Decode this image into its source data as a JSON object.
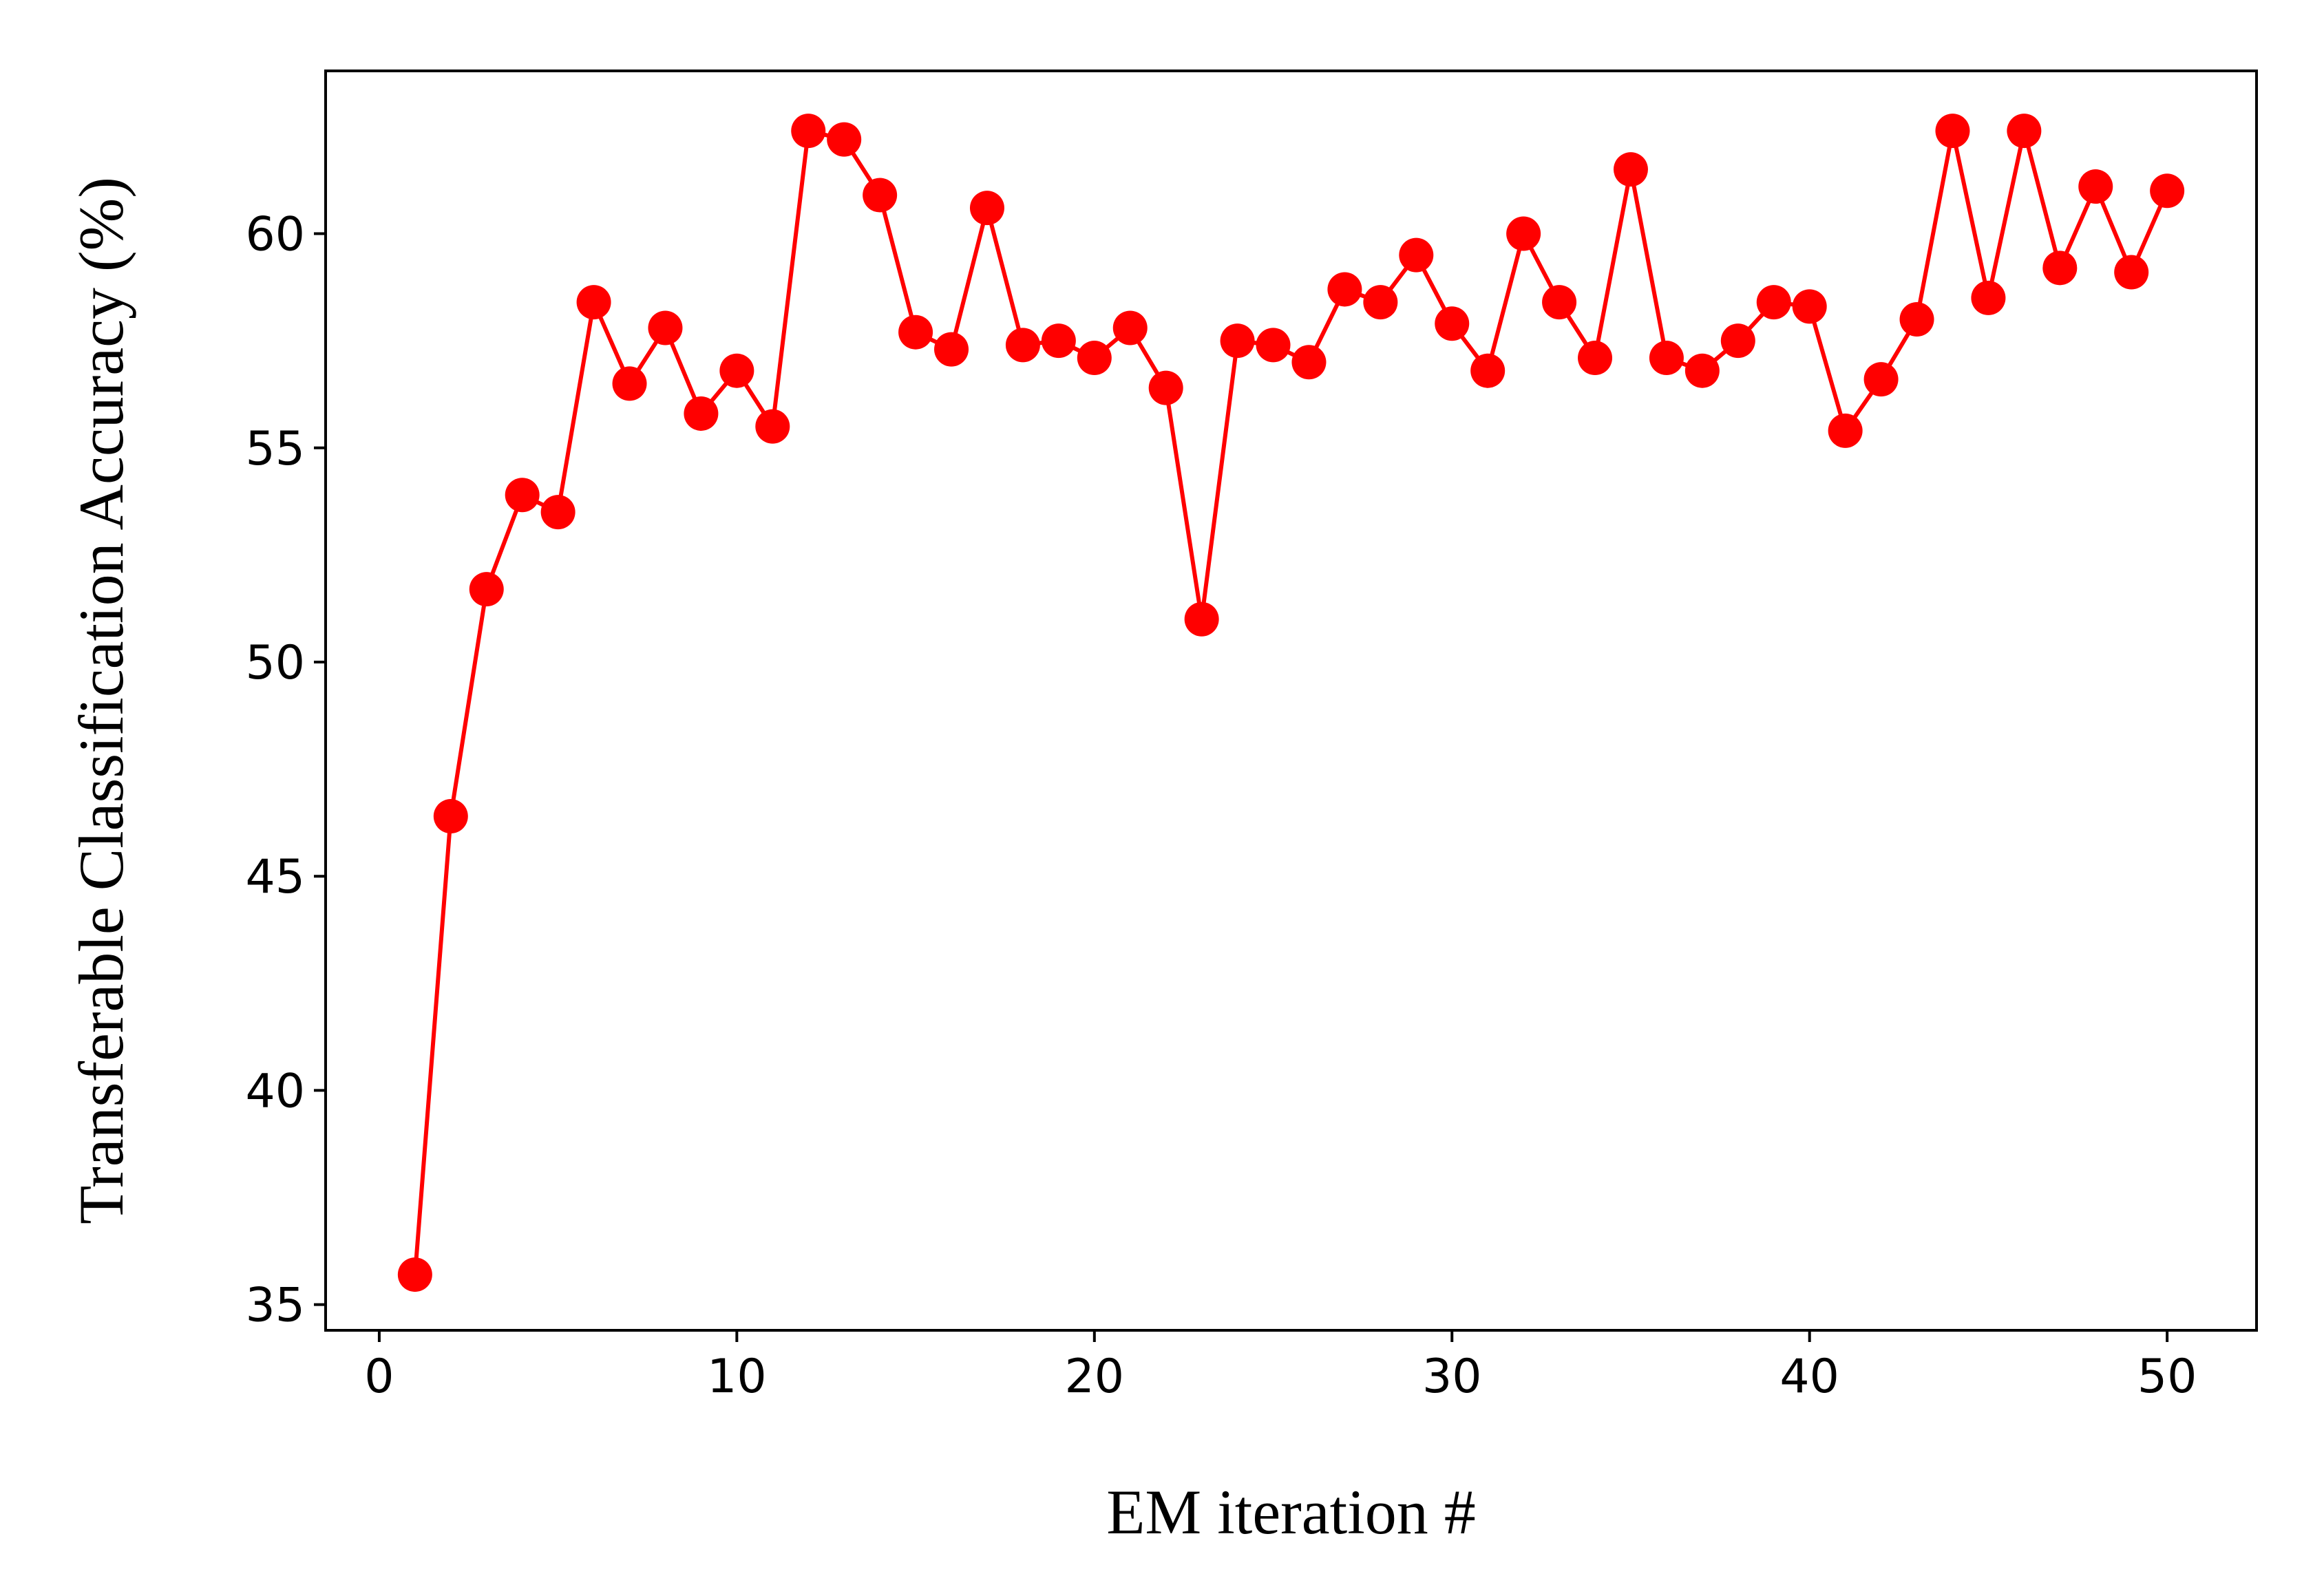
{
  "chart_data": {
    "type": "line",
    "title": "",
    "xlabel": "EM iteration #",
    "ylabel": "Transferable Classification Accuracy (%)",
    "xlim": [
      -1.5,
      52.5
    ],
    "ylim": [
      34.4,
      63.8
    ],
    "xticks": [
      0,
      10,
      20,
      30,
      40,
      50
    ],
    "yticks": [
      35,
      40,
      45,
      50,
      55,
      60
    ],
    "grid": false,
    "legend": null,
    "colors": {
      "series": "#ff0000",
      "axes": "#000000"
    },
    "series": [
      {
        "marker": "circle",
        "x": [
          1,
          2,
          3,
          4,
          5,
          6,
          7,
          8,
          9,
          10,
          11,
          12,
          13,
          14,
          15,
          16,
          17,
          18,
          19,
          20,
          21,
          22,
          23,
          24,
          25,
          26,
          27,
          28,
          29,
          30,
          31,
          32,
          33,
          34,
          35,
          36,
          37,
          38,
          39,
          40,
          41,
          42,
          43,
          44,
          45,
          46,
          47,
          48,
          49,
          50
        ],
        "y": [
          35.7,
          46.4,
          51.7,
          53.9,
          53.5,
          58.4,
          56.5,
          57.8,
          55.8,
          56.8,
          55.5,
          62.4,
          62.2,
          60.9,
          57.7,
          57.3,
          60.6,
          57.4,
          57.5,
          57.1,
          57.8,
          56.4,
          51.0,
          57.5,
          57.4,
          57.0,
          58.7,
          58.4,
          59.5,
          57.9,
          56.8,
          60.0,
          58.4,
          57.1,
          61.5,
          57.1,
          56.8,
          57.5,
          58.4,
          58.3,
          55.4,
          56.6,
          58.0,
          62.4,
          58.5,
          62.4,
          59.2,
          61.1,
          59.1,
          61.0
        ]
      }
    ]
  }
}
